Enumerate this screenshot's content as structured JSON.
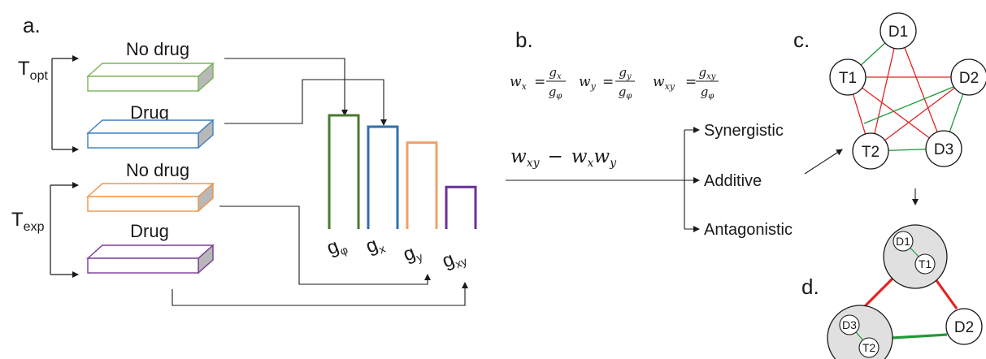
{
  "panel_labels": {
    "a": "a.",
    "b": "b.",
    "c": "c.",
    "d": "d."
  },
  "temperatures": {
    "t_opt": {
      "base": "T",
      "sub": "opt"
    },
    "t_exp": {
      "base": "T",
      "sub": "exp"
    }
  },
  "boxes": {
    "box1": {
      "label": "No drug",
      "color": "#7ab35a"
    },
    "box2": {
      "label": "Drug",
      "color": "#3f7fc0"
    },
    "box3": {
      "label": "No drug",
      "color": "#f0934a"
    },
    "box4": {
      "label": "Drug",
      "color": "#7a3a9a"
    }
  },
  "bars": {
    "phi": {
      "base": "g",
      "sub": "φ",
      "color": "#4a7a2c",
      "relative_height": 1.0
    },
    "x": {
      "base": "g",
      "sub": "x",
      "color": "#2f6fb0",
      "relative_height": 0.9
    },
    "y": {
      "base": "g",
      "sub": "y",
      "color": "#f0a06a",
      "relative_height": 0.76
    },
    "xy": {
      "base": "g",
      "sub": "xy",
      "color": "#6a2f98",
      "relative_height": 0.37
    }
  },
  "formulas": {
    "wx": {
      "lhs_base": "w",
      "lhs_sub": "x",
      "num_base": "g",
      "num_sub": "x",
      "den_base": "g",
      "den_sub": "φ"
    },
    "wy": {
      "lhs_base": "w",
      "lhs_sub": "y",
      "num_base": "g",
      "num_sub": "y",
      "den_base": "g",
      "den_sub": "φ"
    },
    "wxy": {
      "lhs_base": "w",
      "lhs_sub": "xy",
      "num_base": "g",
      "num_sub": "xy",
      "den_base": "g",
      "den_sub": "φ"
    }
  },
  "expression": {
    "a": "w",
    "a_sub": "xy",
    "op": "−",
    "b": "w",
    "b_sub": "x",
    "c": "w",
    "c_sub": "y"
  },
  "outcomes": {
    "synergistic": {
      "label": "Synergistic",
      "color": "#e02424"
    },
    "additive": {
      "label": "Additive",
      "color": "#b4b4b4"
    },
    "antagonistic": {
      "label": "Antagonistic",
      "color": "#1f9a3a"
    }
  },
  "network_c": {
    "nodes": {
      "D1": "D1",
      "D2": "D2",
      "D3": "D3",
      "T1": "T1",
      "T2": "T2"
    }
  },
  "network_d": {
    "nodes": {
      "D1": "D1",
      "T1": "T1",
      "D3": "D3",
      "T2": "T2",
      "D2": "D2"
    }
  },
  "edge_colors": {
    "synergistic": "#e02424",
    "antagonistic": "#1f9a3a"
  }
}
